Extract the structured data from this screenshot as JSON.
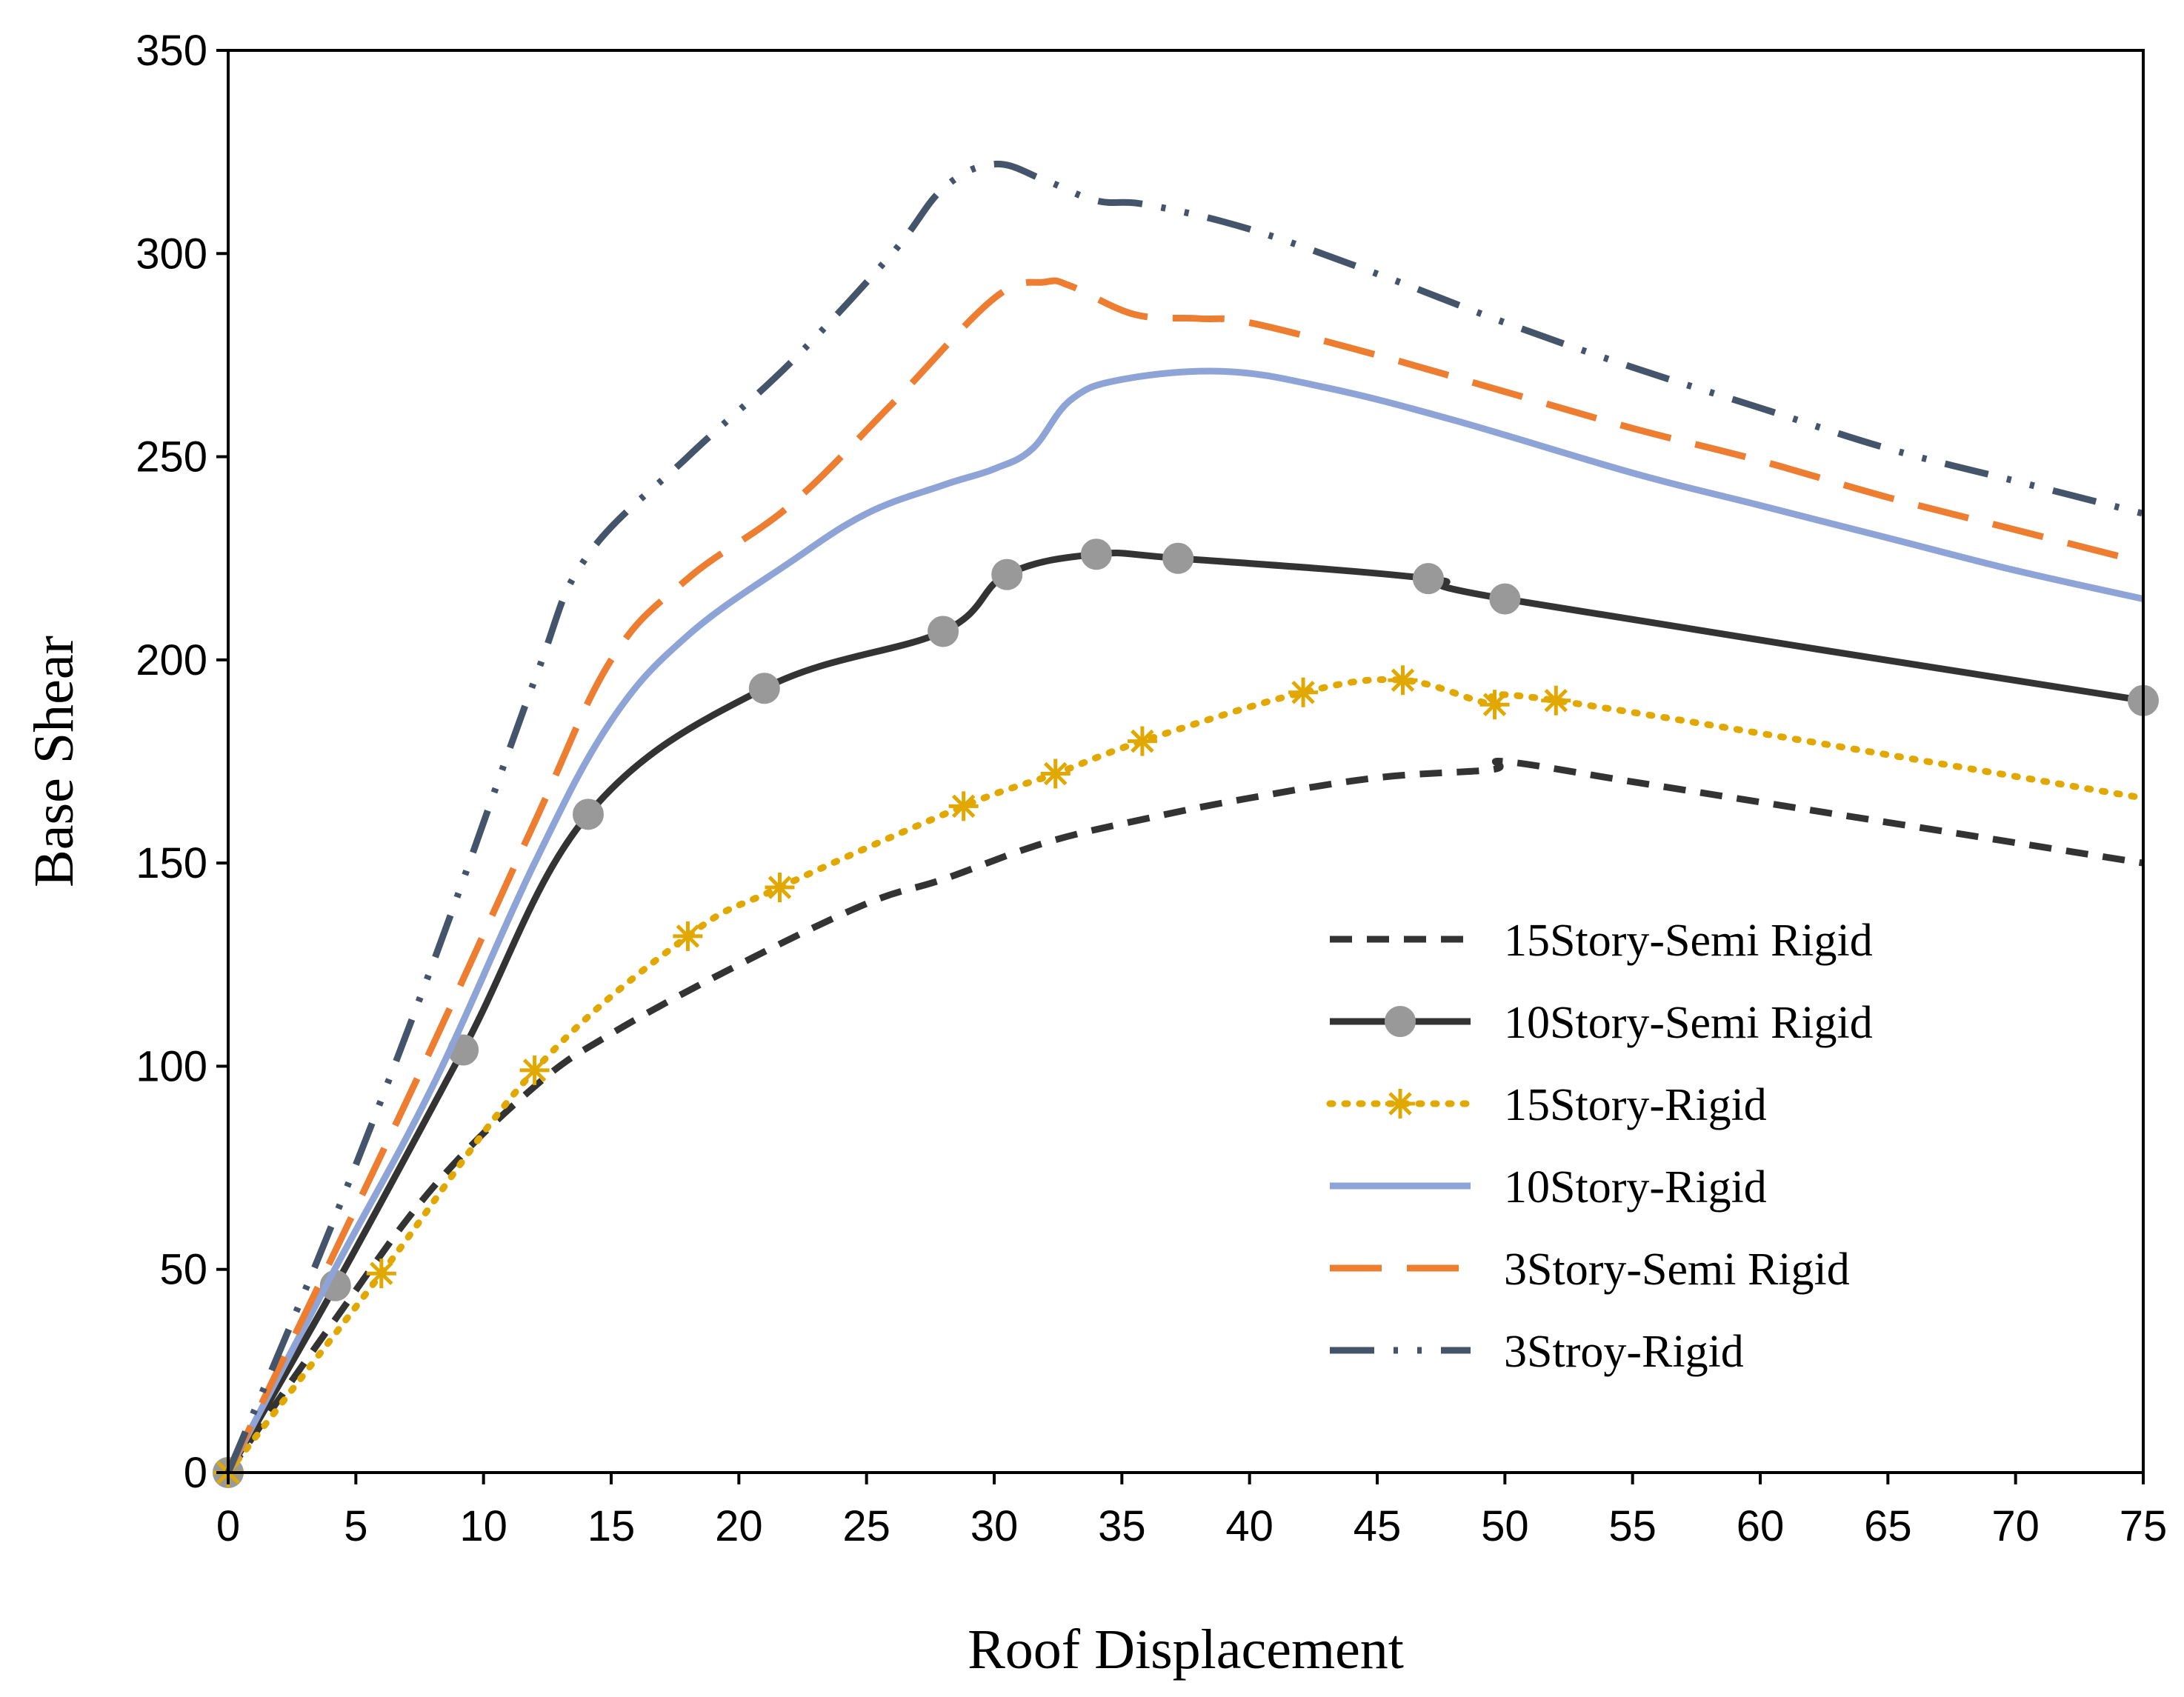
{
  "chart_data": {
    "type": "line",
    "title": "",
    "xlabel": "Roof Displacement",
    "ylabel": "Base Shear",
    "xlim": [
      0,
      75
    ],
    "ylim": [
      0,
      350
    ],
    "xticks": [
      0,
      5,
      10,
      15,
      20,
      25,
      30,
      35,
      40,
      45,
      50,
      55,
      60,
      65,
      70,
      75
    ],
    "yticks": [
      0,
      50,
      100,
      150,
      200,
      250,
      300,
      350
    ],
    "grid": false,
    "legend_position": "bottom-right",
    "series": [
      {
        "name": "15Story-Semi Rigid",
        "color": "#333333",
        "style": "dashed",
        "marker": "none",
        "x": [
          0,
          4,
          8,
          12,
          15,
          20,
          25,
          28,
          32,
          36,
          40,
          45,
          49.5,
          50,
          55,
          60,
          65,
          70,
          75
        ],
        "y": [
          0,
          36,
          70,
          95,
          108,
          125,
          140,
          146,
          155,
          161,
          166,
          171,
          173,
          175,
          170,
          165,
          160,
          155,
          150
        ]
      },
      {
        "name": "10Story-Semi Rigid",
        "color": "#333333",
        "style": "solid",
        "marker": "circle",
        "x": [
          0,
          4.2,
          9.2,
          14.1,
          21,
          28,
          30.5,
          34,
          37.2,
          47,
          50,
          75
        ],
        "y": [
          0,
          46,
          104,
          162,
          193,
          207,
          221,
          226,
          225,
          220,
          215,
          190
        ],
        "marker_x": [
          0,
          4.2,
          9.2,
          14.1,
          21,
          28,
          30.5,
          34,
          37.2,
          47,
          50,
          75
        ],
        "marker_y": [
          0,
          46,
          104,
          162,
          193,
          207,
          221,
          226,
          225,
          220,
          215,
          190
        ]
      },
      {
        "name": "15Story-Rigid",
        "color": "#E0A800",
        "style": "dotted",
        "marker": "asterisk",
        "x": [
          0,
          6,
          12,
          18,
          21.6,
          28.8,
          32.4,
          35.8,
          42.1,
          46,
          49.6,
          52,
          75
        ],
        "y": [
          0,
          49,
          99,
          132,
          144,
          164,
          172,
          180,
          192,
          195,
          189,
          190,
          166
        ],
        "marker_x": [
          0,
          6,
          12,
          18,
          21.6,
          28.8,
          32.4,
          35.8,
          42.1,
          46,
          49.6,
          52
        ],
        "marker_y": [
          0,
          49,
          99,
          132,
          144,
          164,
          172,
          180,
          192,
          195,
          189,
          190
        ]
      },
      {
        "name": "10Story-Rigid",
        "color": "#8FA4D6",
        "style": "solid",
        "marker": "none",
        "x": [
          0,
          4,
          8,
          12,
          15,
          18,
          22,
          25,
          28,
          30,
          31.5,
          33,
          35,
          39,
          43,
          48,
          55,
          60,
          65,
          70,
          75
        ],
        "y": [
          0,
          48,
          95,
          150,
          185,
          206,
          224,
          236,
          243,
          247,
          252,
          264,
          269,
          271,
          267,
          259,
          246,
          238,
          230,
          222,
          215
        ]
      },
      {
        "name": "3Story-Semi Rigid",
        "color": "#ED7D31",
        "style": "long-dash",
        "marker": "none",
        "x": [
          0,
          4,
          8,
          12,
          15,
          18,
          22,
          26,
          30,
          32,
          33,
          35.5,
          38,
          40,
          45,
          50,
          55,
          60,
          65,
          70,
          75
        ],
        "y": [
          0,
          52,
          105,
          160,
          200,
          220,
          238,
          263,
          289,
          293,
          292,
          285,
          284,
          283,
          275,
          266,
          257,
          249,
          240,
          232,
          224
        ]
      },
      {
        "name": "3Stroy-Rigid",
        "color": "#44546A",
        "style": "dash-dot-dot",
        "marker": "none",
        "x": [
          0,
          4,
          8,
          12,
          14,
          18,
          22,
          26,
          28,
          30,
          32,
          34,
          36,
          40,
          45,
          50,
          55,
          60,
          65,
          70,
          75
        ],
        "y": [
          0,
          60,
          125,
          195,
          225,
          250,
          273,
          300,
          316,
          322,
          318,
          313,
          312,
          306,
          295,
          283,
          272,
          262,
          252,
          244,
          236
        ]
      }
    ]
  }
}
